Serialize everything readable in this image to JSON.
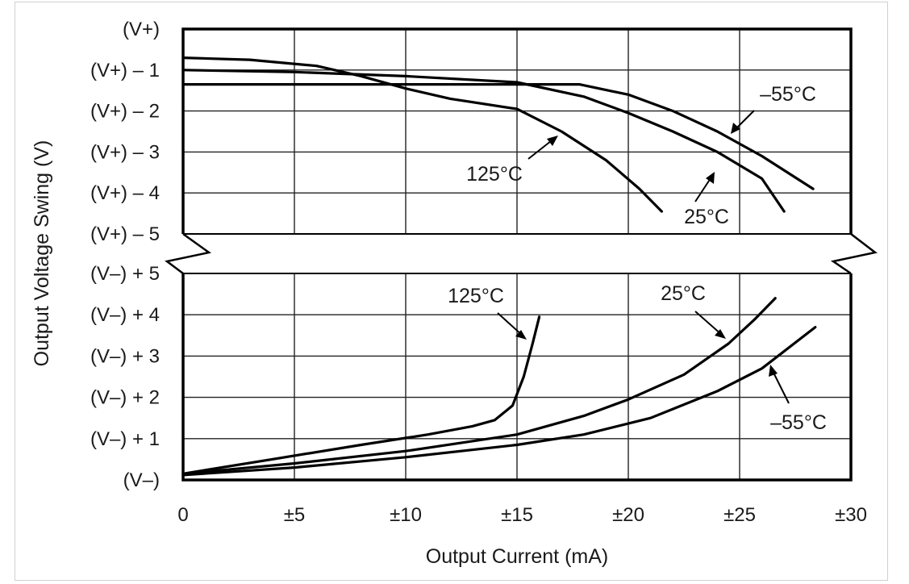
{
  "chart_data": {
    "type": "line",
    "xlabel": "Output Current (mA)",
    "ylabel": "Output Voltage Swing (V)",
    "x_ticks": [
      "0",
      "±5",
      "±10",
      "±15",
      "±20",
      "±25",
      "±30"
    ],
    "xlim": [
      0,
      30
    ],
    "grid": true,
    "panels": [
      {
        "name": "upper",
        "y_ticks": [
          "(V+)",
          "(V+) – 1",
          "(V+) – 2",
          "(V+) – 3",
          "(V+) – 4",
          "(V+) – 5"
        ],
        "ylim": [
          -5,
          0
        ],
        "y_meaning": "voltage relative to V+ (V)",
        "series": [
          {
            "label": "–55°C",
            "points": [
              [
                0,
                -1.35
              ],
              [
                6,
                -1.35
              ],
              [
                12,
                -1.35
              ],
              [
                17.8,
                -1.35
              ],
              [
                20,
                -1.6
              ],
              [
                22,
                -2.0
              ],
              [
                24,
                -2.5
              ],
              [
                26,
                -3.1
              ],
              [
                28.3,
                -3.9
              ]
            ]
          },
          {
            "label": "25°C",
            "points": [
              [
                0,
                -1.0
              ],
              [
                5,
                -1.05
              ],
              [
                10,
                -1.15
              ],
              [
                15,
                -1.3
              ],
              [
                18,
                -1.65
              ],
              [
                20,
                -2.05
              ],
              [
                22,
                -2.5
              ],
              [
                24,
                -3.0
              ],
              [
                26,
                -3.65
              ],
              [
                27,
                -4.45
              ]
            ]
          },
          {
            "label": "125°C",
            "points": [
              [
                0,
                -0.7
              ],
              [
                3,
                -0.75
              ],
              [
                6,
                -0.9
              ],
              [
                8,
                -1.15
              ],
              [
                10,
                -1.45
              ],
              [
                12,
                -1.7
              ],
              [
                15,
                -1.95
              ],
              [
                17,
                -2.5
              ],
              [
                19,
                -3.2
              ],
              [
                20.5,
                -3.9
              ],
              [
                21.5,
                -4.45
              ]
            ]
          }
        ]
      },
      {
        "name": "lower",
        "y_ticks": [
          "(V–) + 5",
          "(V–) + 4",
          "(V–) + 3",
          "(V–) + 2",
          "(V–) + 1",
          "(V–)"
        ],
        "ylim": [
          0,
          5
        ],
        "y_meaning": "voltage relative to V– (V)",
        "series": [
          {
            "label": "125°C",
            "points": [
              [
                0,
                0.15
              ],
              [
                4,
                0.5
              ],
              [
                8,
                0.85
              ],
              [
                11,
                1.1
              ],
              [
                13,
                1.3
              ],
              [
                14,
                1.45
              ],
              [
                14.8,
                1.8
              ],
              [
                15.3,
                2.5
              ],
              [
                15.7,
                3.3
              ],
              [
                16,
                3.95
              ]
            ]
          },
          {
            "label": "25°C",
            "points": [
              [
                0,
                0.15
              ],
              [
                5,
                0.4
              ],
              [
                10,
                0.7
              ],
              [
                15,
                1.1
              ],
              [
                18,
                1.55
              ],
              [
                20,
                1.95
              ],
              [
                22.5,
                2.55
              ],
              [
                24.5,
                3.3
              ],
              [
                25.7,
                3.9
              ],
              [
                26.6,
                4.4
              ]
            ]
          },
          {
            "label": "–55°C",
            "points": [
              [
                0,
                0.12
              ],
              [
                5,
                0.3
              ],
              [
                10,
                0.55
              ],
              [
                15,
                0.85
              ],
              [
                18,
                1.1
              ],
              [
                21,
                1.5
              ],
              [
                24,
                2.15
              ],
              [
                26,
                2.7
              ],
              [
                28.4,
                3.7
              ]
            ]
          }
        ]
      }
    ]
  }
}
